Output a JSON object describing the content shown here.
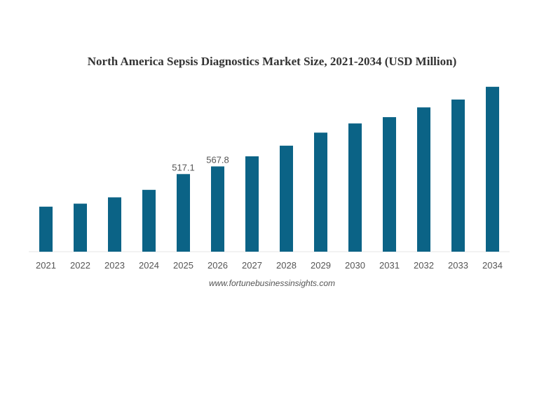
{
  "chart_data": {
    "type": "bar",
    "title": "North America Sepsis Diagnostics Market Size, 2021-2034 (USD Million)",
    "xlabel": "",
    "ylabel": "",
    "categories": [
      "2021",
      "2022",
      "2023",
      "2024",
      "2025",
      "2026",
      "2027",
      "2028",
      "2029",
      "2030",
      "2031",
      "2032",
      "2033",
      "2034"
    ],
    "values": [
      300,
      320,
      362,
      412,
      517.1,
      567.8,
      635,
      706,
      793,
      854,
      896,
      961,
      1013,
      1098
    ],
    "data_labels": {
      "2025": "517.1",
      "2026": "567.8"
    },
    "ylim": [
      0,
      1200
    ],
    "grid": false,
    "legend": "none",
    "bar_color": "#0b6386",
    "source": "www.fortunebusinessinsights.com"
  }
}
